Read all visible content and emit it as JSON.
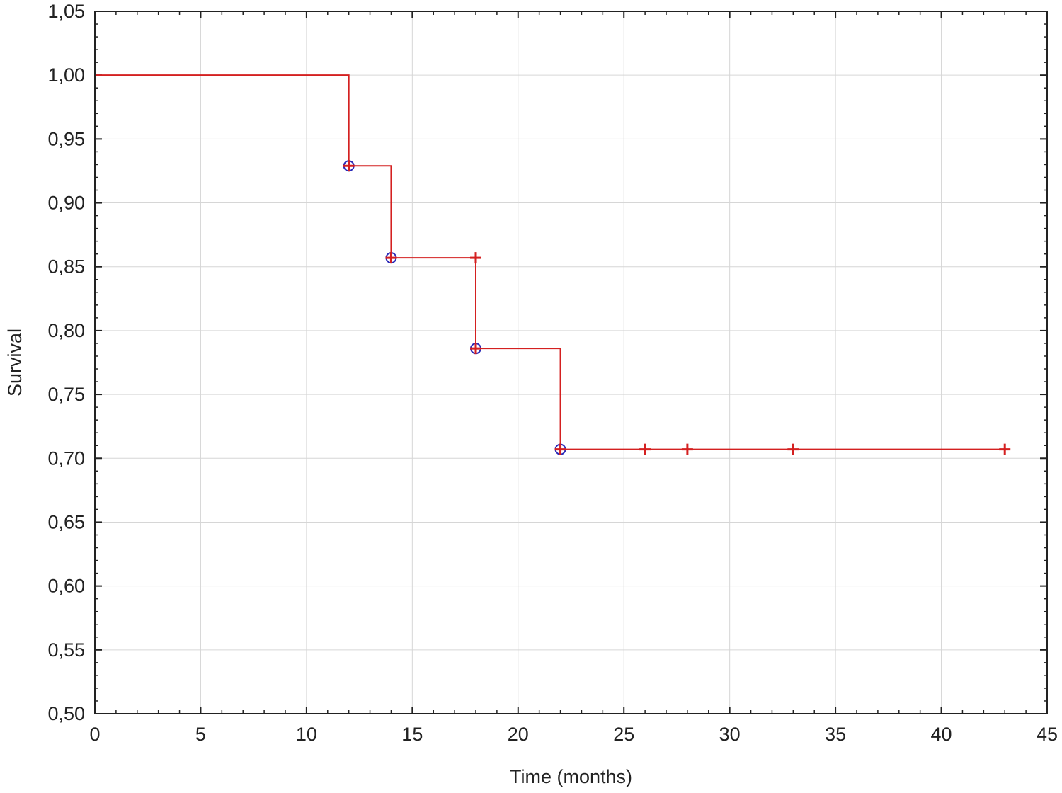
{
  "chart_data": {
    "type": "line",
    "title": "",
    "xlabel": "Time (months)",
    "ylabel": "Survival",
    "xlim": [
      0,
      45
    ],
    "ylim": [
      0.5,
      1.05
    ],
    "x_ticks": [
      0,
      5,
      10,
      15,
      20,
      25,
      30,
      35,
      40,
      45
    ],
    "x_tick_labels": [
      "0",
      "5",
      "10",
      "15",
      "20",
      "25",
      "30",
      "35",
      "40",
      "45"
    ],
    "y_ticks": [
      0.5,
      0.55,
      0.6,
      0.65,
      0.7,
      0.75,
      0.8,
      0.85,
      0.9,
      0.95,
      1.0,
      1.05
    ],
    "y_tick_labels": [
      "0,50",
      "0,55",
      "0,60",
      "0,65",
      "0,70",
      "0,75",
      "0,80",
      "0,85",
      "0,90",
      "0,95",
      "1,00",
      "1,05"
    ],
    "grid": true,
    "series": [
      {
        "step": true,
        "color": "#d42020",
        "x": [
          0,
          12,
          14,
          18,
          22,
          43
        ],
        "y": [
          1.0,
          0.929,
          0.857,
          0.786,
          0.707,
          0.707
        ]
      }
    ],
    "events": {
      "marker": "circle",
      "color": "#2a2ab8",
      "points": [
        {
          "x": 12,
          "y": 0.929
        },
        {
          "x": 14,
          "y": 0.857
        },
        {
          "x": 18,
          "y": 0.786
        },
        {
          "x": 22,
          "y": 0.707
        }
      ]
    },
    "censored": {
      "marker": "plus",
      "color": "#d42020",
      "points": [
        {
          "x": 12,
          "y": 0.929
        },
        {
          "x": 14,
          "y": 0.857
        },
        {
          "x": 18,
          "y": 0.857
        },
        {
          "x": 18,
          "y": 0.786
        },
        {
          "x": 22,
          "y": 0.707
        },
        {
          "x": 26,
          "y": 0.707
        },
        {
          "x": 28,
          "y": 0.707
        },
        {
          "x": 33,
          "y": 0.707
        },
        {
          "x": 43,
          "y": 0.707
        }
      ]
    }
  }
}
